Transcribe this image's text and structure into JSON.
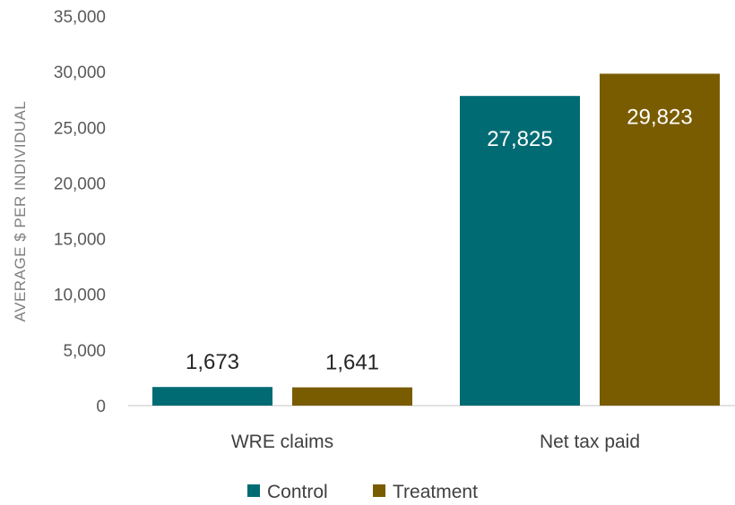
{
  "chart_data": {
    "type": "bar",
    "title": "",
    "xlabel": "",
    "ylabel": "AVERAGE $ PER INDIVIDUAL",
    "ylim": [
      0,
      35000
    ],
    "yticks": [
      0,
      5000,
      10000,
      15000,
      20000,
      25000,
      30000,
      35000
    ],
    "ytick_labels": [
      "0",
      "5,000",
      "10,000",
      "15,000",
      "20,000",
      "25,000",
      "30,000",
      "35,000"
    ],
    "grid": false,
    "legend_position": "bottom",
    "categories": [
      "WRE claims",
      "Net tax paid"
    ],
    "series": [
      {
        "name": "Control",
        "color": "#006b73",
        "values": [
          1673,
          27825
        ],
        "labels": [
          "1,673",
          "27,825"
        ]
      },
      {
        "name": "Treatment",
        "color": "#7a5c00",
        "values": [
          1641,
          29823
        ],
        "labels": [
          "1,641",
          "29,823"
        ]
      }
    ]
  }
}
